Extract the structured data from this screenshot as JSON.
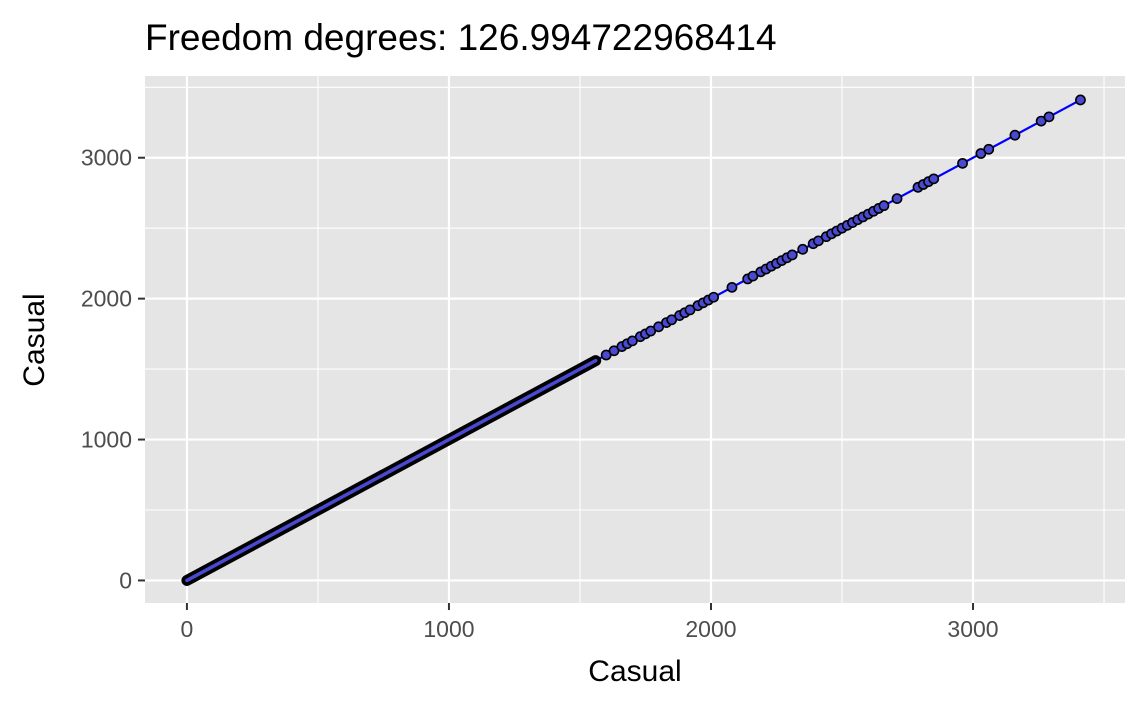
{
  "chart_data": {
    "type": "scatter",
    "title": "Freedom degrees: 126.994722968414",
    "xlabel": "Casual",
    "ylabel": "Casual",
    "xlim": [
      -160,
      3580
    ],
    "ylim": [
      -160,
      3580
    ],
    "x_ticks": [
      0,
      1000,
      2000,
      3000
    ],
    "y_ticks": [
      0,
      1000,
      2000,
      3000
    ],
    "x_tick_labels": [
      "0",
      "1000",
      "2000",
      "3000"
    ],
    "y_tick_labels": [
      "0",
      "1000",
      "2000",
      "3000"
    ],
    "grid": true,
    "legend": "none",
    "colors": {
      "panel_background": "#e5e5e5",
      "grid": "#ffffff",
      "point_stroke": "#000000",
      "point_fill": "#4a4ad0",
      "line": "#0000ff"
    },
    "fit_line": {
      "x": [
        0,
        3410
      ],
      "y": [
        0,
        3410
      ]
    },
    "dense_run": {
      "from": 0,
      "to": 1560
    },
    "series": [
      {
        "x": [
          1600,
          1630,
          1660,
          1680,
          1700,
          1730,
          1750,
          1770,
          1800,
          1830,
          1850,
          1880,
          1900,
          1920,
          1950,
          1970,
          1990,
          2010,
          2080,
          2140,
          2160,
          2190,
          2210,
          2230,
          2250,
          2270,
          2290,
          2310,
          2350,
          2390,
          2410,
          2440,
          2460,
          2480,
          2500,
          2520,
          2540,
          2560,
          2580,
          2600,
          2620,
          2640,
          2660,
          2710,
          2790,
          2810,
          2830,
          2850,
          2960,
          3030,
          3060,
          3160,
          3260,
          3290,
          3410
        ],
        "y": [
          1600,
          1630,
          1660,
          1680,
          1700,
          1730,
          1750,
          1770,
          1800,
          1830,
          1850,
          1880,
          1900,
          1920,
          1950,
          1970,
          1990,
          2010,
          2080,
          2140,
          2160,
          2190,
          2210,
          2230,
          2250,
          2270,
          2290,
          2310,
          2350,
          2390,
          2410,
          2440,
          2460,
          2480,
          2500,
          2520,
          2540,
          2560,
          2580,
          2600,
          2620,
          2640,
          2660,
          2710,
          2790,
          2810,
          2830,
          2850,
          2960,
          3030,
          3060,
          3160,
          3260,
          3290,
          3410
        ]
      }
    ]
  }
}
